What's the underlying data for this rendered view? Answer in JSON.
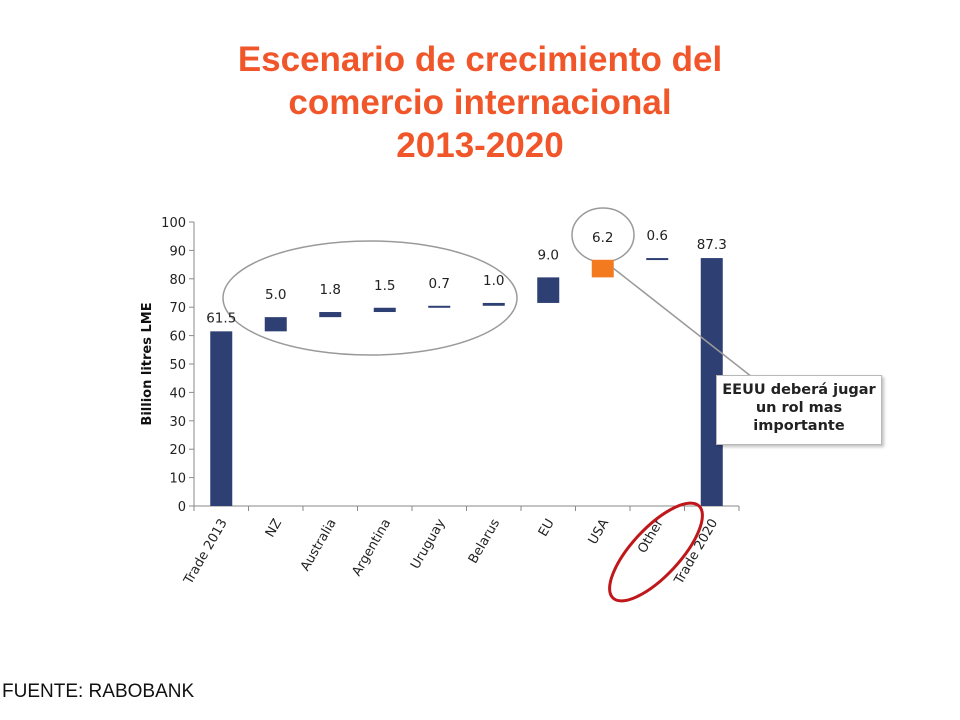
{
  "title_lines": [
    "Escenario de crecimiento del",
    "comercio internacional",
    "2013-2020"
  ],
  "source": "FUENTE: RABOBANK",
  "callout": [
    "EEUU deberá jugar",
    "un rol mas",
    "importante"
  ],
  "colors": {
    "title": "#f0562a",
    "bar": "#2e3f73",
    "highlight": "#f47a1f",
    "ellipse_red": "#c0171b"
  },
  "chart_data": {
    "type": "bar",
    "subtype": "waterfall",
    "categories": [
      "Trade 2013",
      "NZ",
      "Australia",
      "Argentina",
      "Uruguay",
      "Belarus",
      "EU",
      "USA",
      "Other",
      "Trade 2020"
    ],
    "values": [
      61.5,
      5.0,
      1.8,
      1.5,
      0.7,
      1.0,
      9.0,
      6.2,
      0.6,
      87.3
    ],
    "data_labels": [
      "61.5",
      "5.0",
      "1.8",
      "1.5",
      "0.7",
      "1.0",
      "9.0",
      "6.2",
      "0.6",
      "87.3"
    ],
    "kinds": [
      "total",
      "increase",
      "increase",
      "increase",
      "increase",
      "increase",
      "increase",
      "increase",
      "increase",
      "total"
    ],
    "highlighted": [
      "USA"
    ],
    "ylabel": "Billion litres LME",
    "ylim": [
      0,
      100
    ],
    "yticks": [
      0,
      10,
      20,
      30,
      40,
      50,
      60,
      70,
      80,
      90,
      100
    ],
    "grid": false,
    "legend": "none"
  }
}
